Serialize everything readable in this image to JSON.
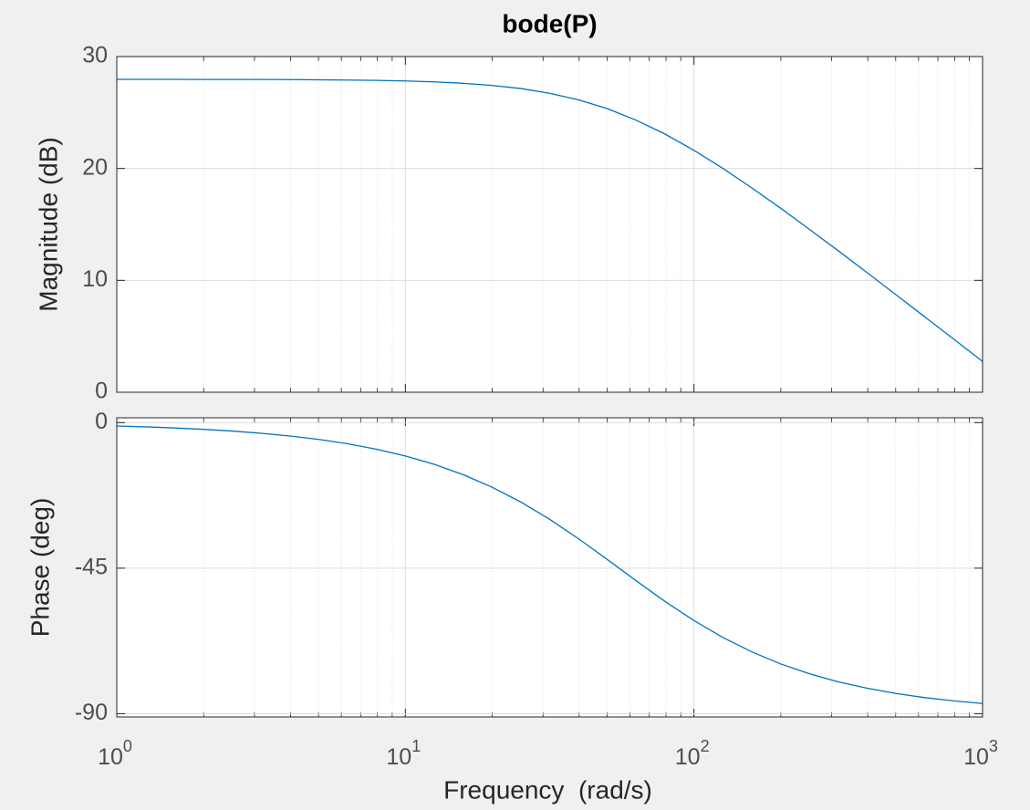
{
  "chart_data": [
    {
      "type": "line",
      "title": "bode(P)",
      "ylabel": "Magnitude (dB)",
      "log_x": true,
      "grid": true,
      "xlim": [
        1,
        1000
      ],
      "xticks": [
        1,
        10,
        100,
        1000
      ],
      "ylim": [
        0,
        30
      ],
      "yticks": [
        0,
        10,
        20,
        30
      ],
      "x": [
        1,
        1.259,
        1.585,
        1.995,
        2.512,
        3.162,
        3.981,
        5.012,
        6.31,
        7.943,
        10,
        12.59,
        15.85,
        19.95,
        25.12,
        31.62,
        39.81,
        50.12,
        63.1,
        79.43,
        100,
        125.9,
        158.5,
        199.5,
        251.2,
        316.2,
        398.1,
        501.2,
        631,
        794.3,
        1000
      ],
      "series": [
        {
          "color": "#0072bd",
          "values": [
            27.96,
            27.96,
            27.96,
            27.95,
            27.95,
            27.95,
            27.94,
            27.92,
            27.9,
            27.87,
            27.82,
            27.74,
            27.61,
            27.42,
            27.14,
            26.72,
            26.13,
            25.34,
            24.31,
            23.07,
            21.62,
            20.01,
            18.27,
            16.45,
            14.56,
            12.64,
            10.69,
            8.71,
            6.73,
            4.75,
            2.75
          ]
        }
      ]
    },
    {
      "type": "line",
      "ylabel": "Phase (deg)",
      "xlabel": "Frequency  (rad/s)",
      "log_x": true,
      "grid": true,
      "xlim": [
        1,
        1000
      ],
      "xticks": [
        {
          "value": 1,
          "label": "10",
          "superscript": "0"
        },
        {
          "value": 10,
          "label": "10",
          "superscript": "1"
        },
        {
          "value": 100,
          "label": "10",
          "superscript": "2"
        },
        {
          "value": 1000,
          "label": "10",
          "superscript": "3"
        }
      ],
      "ylim": [
        -91,
        1.5
      ],
      "yticks": [
        -90,
        -45,
        0
      ],
      "x": [
        1,
        1.259,
        1.585,
        1.995,
        2.512,
        3.162,
        3.981,
        5.012,
        6.31,
        7.943,
        10,
        12.59,
        15.85,
        19.95,
        25.12,
        31.62,
        39.81,
        50.12,
        63.1,
        79.43,
        100,
        125.9,
        158.5,
        199.5,
        251.2,
        316.2,
        398.1,
        501.2,
        631,
        794.3,
        1000
      ],
      "series": [
        {
          "color": "#0072bd",
          "values": [
            -1.04,
            -1.31,
            -1.65,
            -2.08,
            -2.61,
            -3.29,
            -4.14,
            -5.21,
            -6.54,
            -8.22,
            -10.3,
            -12.89,
            -16.08,
            -19.94,
            -24.55,
            -29.9,
            -35.9,
            -42.34,
            -48.92,
            -55.3,
            -61.19,
            -66.4,
            -70.86,
            -74.59,
            -77.65,
            -80.13,
            -82.13,
            -83.74,
            -85.02,
            -86.04,
            -86.85
          ]
        }
      ]
    }
  ]
}
